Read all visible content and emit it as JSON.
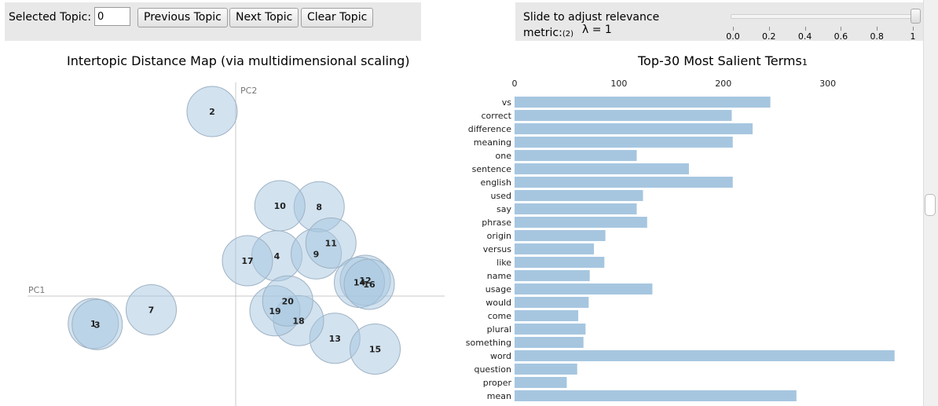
{
  "controls": {
    "selected_topic_label": "Selected Topic:",
    "selected_topic_value": "0",
    "prev_label": "Previous Topic",
    "next_label": "Next Topic",
    "clear_label": "Clear Topic"
  },
  "slider": {
    "line1": "Slide to adjust relevance",
    "line2": "metric:",
    "footnote": "(2)",
    "lambda_text": "λ = 1",
    "value": 1,
    "ticks": [
      "0.0",
      "0.2",
      "0.4",
      "0.6",
      "0.8",
      "1"
    ]
  },
  "chart_data": [
    {
      "type": "scatter",
      "title": "Intertopic Distance Map (via multidimensional scaling)",
      "xlabel": "PC1",
      "ylabel": "PC2",
      "color": "#a6c6e0",
      "topics": [
        {
          "id": "1",
          "x": -0.145,
          "y": -0.028
        },
        {
          "id": "2",
          "x": -0.024,
          "y": 0.188
        },
        {
          "id": "3",
          "x": -0.141,
          "y": -0.029
        },
        {
          "id": "4",
          "x": 0.042,
          "y": 0.041
        },
        {
          "id": "7",
          "x": -0.086,
          "y": -0.014
        },
        {
          "id": "8",
          "x": 0.085,
          "y": 0.091
        },
        {
          "id": "9",
          "x": 0.082,
          "y": 0.043
        },
        {
          "id": "10",
          "x": 0.045,
          "y": 0.092
        },
        {
          "id": "11",
          "x": 0.097,
          "y": 0.054
        },
        {
          "id": "12",
          "x": 0.132,
          "y": 0.016
        },
        {
          "id": "13",
          "x": 0.101,
          "y": -0.043
        },
        {
          "id": "14",
          "x": 0.126,
          "y": 0.014
        },
        {
          "id": "15",
          "x": 0.142,
          "y": -0.054
        },
        {
          "id": "16",
          "x": 0.136,
          "y": 0.012
        },
        {
          "id": "17",
          "x": 0.012,
          "y": 0.036
        },
        {
          "id": "18",
          "x": 0.064,
          "y": -0.025
        },
        {
          "id": "19",
          "x": 0.04,
          "y": -0.015
        },
        {
          "id": "20",
          "x": 0.053,
          "y": -0.005
        }
      ]
    },
    {
      "type": "bar",
      "title": "Top-30 Most Salient Terms",
      "title_footnote": "1",
      "color": "#a6c6e0",
      "xticks": [
        0,
        100,
        200,
        300
      ],
      "categories": [
        "vs",
        "correct",
        "difference",
        "meaning",
        "one",
        "sentence",
        "english",
        "used",
        "say",
        "phrase",
        "origin",
        "versus",
        "like",
        "name",
        "usage",
        "would",
        "come",
        "plural",
        "something",
        "word",
        "question",
        "proper",
        "mean"
      ],
      "values": [
        245,
        208,
        228,
        209,
        117,
        167,
        209,
        123,
        117,
        127,
        87,
        76,
        86,
        72,
        132,
        71,
        61,
        68,
        66,
        364,
        60,
        50,
        270
      ]
    }
  ]
}
